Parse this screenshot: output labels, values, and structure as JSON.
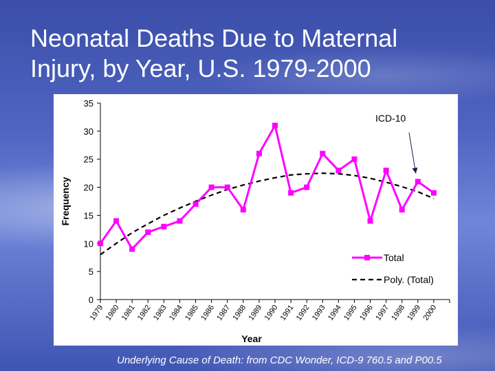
{
  "slide": {
    "title_line1": "Neonatal Deaths Due to Maternal",
    "title_line2": "Injury, by Year, U.S. 1979-2000",
    "source": "Underlying Cause of Death: from CDC Wonder, ICD-9 760.5 and P00.5"
  },
  "chart_data": {
    "type": "line",
    "title": "",
    "xlabel": "Year",
    "ylabel": "Frequency",
    "ylim": [
      0,
      35
    ],
    "yticks": [
      0,
      5,
      10,
      15,
      20,
      25,
      30,
      35
    ],
    "grid": false,
    "legend_position": "bottom-right",
    "categories": [
      "1979",
      "1980",
      "1981",
      "1982",
      "1983",
      "1984",
      "1985",
      "1986",
      "1987",
      "1988",
      "1989",
      "1990",
      "1991",
      "1992",
      "1993",
      "1994",
      "1995",
      "1996",
      "1997",
      "1998",
      "1999",
      "2000"
    ],
    "series": [
      {
        "name": "Total",
        "color": "#ff00ff",
        "marker": "square",
        "values": [
          10,
          14,
          9,
          12,
          13,
          14,
          17,
          20,
          20,
          16,
          26,
          31,
          19,
          20,
          26,
          23,
          25,
          14,
          23,
          16,
          21,
          19
        ]
      },
      {
        "name": "Poly. (Total)",
        "color": "#000000",
        "style": "dashed",
        "values": [
          8.0,
          10.0,
          11.9,
          13.5,
          15.0,
          16.3,
          17.5,
          18.6,
          19.6,
          20.4,
          21.1,
          21.7,
          22.2,
          22.4,
          22.5,
          22.4,
          22.1,
          21.6,
          20.9,
          20.1,
          19.2,
          18.0
        ]
      }
    ],
    "annotations": [
      {
        "text": "ICD-10",
        "points_to": "1999"
      }
    ]
  }
}
